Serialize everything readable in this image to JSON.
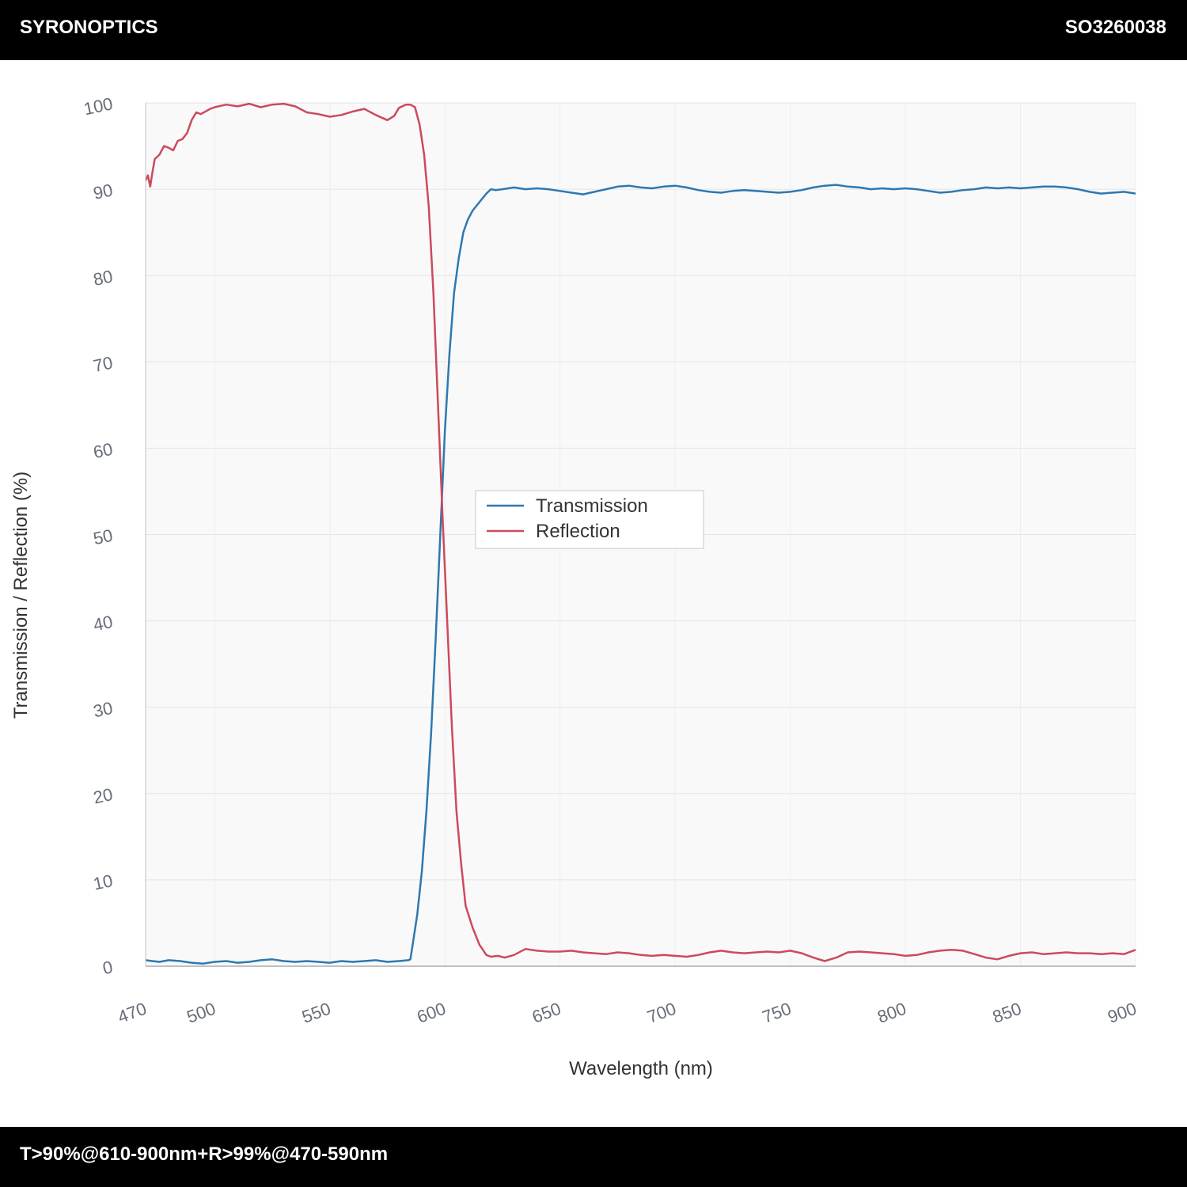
{
  "header": {
    "brand": "SYRONOPTICS",
    "part_number": "SO3260038"
  },
  "footer": {
    "spec": "T>90%@610-900nm+R>99%@470-590nm"
  },
  "colors": {
    "transmission": "#2e78b0",
    "reflection": "#cc4a5c",
    "bar": "#000000",
    "plot_bg": "#f9f9f9",
    "grid": "#e4e4e4"
  },
  "chart_data": {
    "type": "line",
    "xlabel": "Wavelength (nm)",
    "ylabel": "Transmission / Reflection (%)",
    "xlim": [
      470,
      900
    ],
    "ylim": [
      0,
      100
    ],
    "x_ticks": [
      470,
      500,
      550,
      600,
      650,
      700,
      750,
      800,
      850,
      900
    ],
    "y_ticks": [
      0,
      10,
      20,
      30,
      40,
      50,
      60,
      70,
      80,
      90,
      100
    ],
    "grid": true,
    "legend_position": "center",
    "series": [
      {
        "name": "Transmission",
        "color": "#2e78b0",
        "points": [
          [
            470,
            0.7
          ],
          [
            473,
            0.6
          ],
          [
            476,
            0.5
          ],
          [
            480,
            0.7
          ],
          [
            485,
            0.6
          ],
          [
            490,
            0.4
          ],
          [
            495,
            0.3
          ],
          [
            500,
            0.5
          ],
          [
            505,
            0.6
          ],
          [
            510,
            0.4
          ],
          [
            515,
            0.5
          ],
          [
            520,
            0.7
          ],
          [
            525,
            0.8
          ],
          [
            530,
            0.6
          ],
          [
            535,
            0.5
          ],
          [
            540,
            0.6
          ],
          [
            545,
            0.5
          ],
          [
            550,
            0.4
          ],
          [
            555,
            0.6
          ],
          [
            560,
            0.5
          ],
          [
            565,
            0.6
          ],
          [
            570,
            0.7
          ],
          [
            575,
            0.5
          ],
          [
            580,
            0.6
          ],
          [
            584,
            0.7
          ],
          [
            585,
            0.8
          ],
          [
            586,
            2.5
          ],
          [
            588,
            6
          ],
          [
            590,
            11
          ],
          [
            592,
            18
          ],
          [
            594,
            27
          ],
          [
            596,
            38
          ],
          [
            598,
            50
          ],
          [
            600,
            62
          ],
          [
            602,
            71
          ],
          [
            604,
            78
          ],
          [
            606,
            82
          ],
          [
            608,
            85
          ],
          [
            610,
            86.5
          ],
          [
            612,
            87.5
          ],
          [
            615,
            88.5
          ],
          [
            618,
            89.5
          ],
          [
            620,
            90.0
          ],
          [
            622,
            89.9
          ],
          [
            625,
            90.0
          ],
          [
            630,
            90.2
          ],
          [
            635,
            90.0
          ],
          [
            640,
            90.1
          ],
          [
            645,
            90.0
          ],
          [
            650,
            89.8
          ],
          [
            655,
            89.6
          ],
          [
            660,
            89.4
          ],
          [
            665,
            89.7
          ],
          [
            670,
            90.0
          ],
          [
            675,
            90.3
          ],
          [
            680,
            90.4
          ],
          [
            685,
            90.2
          ],
          [
            690,
            90.1
          ],
          [
            695,
            90.3
          ],
          [
            700,
            90.4
          ],
          [
            705,
            90.2
          ],
          [
            710,
            89.9
          ],
          [
            715,
            89.7
          ],
          [
            720,
            89.6
          ],
          [
            725,
            89.8
          ],
          [
            730,
            89.9
          ],
          [
            735,
            89.8
          ],
          [
            740,
            89.7
          ],
          [
            745,
            89.6
          ],
          [
            750,
            89.7
          ],
          [
            755,
            89.9
          ],
          [
            760,
            90.2
          ],
          [
            765,
            90.4
          ],
          [
            770,
            90.5
          ],
          [
            775,
            90.3
          ],
          [
            780,
            90.2
          ],
          [
            785,
            90.0
          ],
          [
            790,
            90.1
          ],
          [
            795,
            90.0
          ],
          [
            800,
            90.1
          ],
          [
            805,
            90.0
          ],
          [
            810,
            89.8
          ],
          [
            815,
            89.6
          ],
          [
            820,
            89.7
          ],
          [
            825,
            89.9
          ],
          [
            830,
            90.0
          ],
          [
            835,
            90.2
          ],
          [
            840,
            90.1
          ],
          [
            845,
            90.2
          ],
          [
            850,
            90.1
          ],
          [
            855,
            90.2
          ],
          [
            860,
            90.3
          ],
          [
            865,
            90.3
          ],
          [
            870,
            90.2
          ],
          [
            875,
            90.0
          ],
          [
            880,
            89.7
          ],
          [
            885,
            89.5
          ],
          [
            890,
            89.6
          ],
          [
            895,
            89.7
          ],
          [
            900,
            89.5
          ]
        ]
      },
      {
        "name": "Reflection",
        "color": "#cc4a5c",
        "points": [
          [
            470,
            91.0
          ],
          [
            471,
            91.6
          ],
          [
            472,
            90.3
          ],
          [
            473,
            92.0
          ],
          [
            474,
            93.5
          ],
          [
            476,
            94.0
          ],
          [
            478,
            95.0
          ],
          [
            480,
            94.8
          ],
          [
            482,
            94.5
          ],
          [
            484,
            95.6
          ],
          [
            486,
            95.8
          ],
          [
            488,
            96.5
          ],
          [
            490,
            98.0
          ],
          [
            492,
            98.9
          ],
          [
            494,
            98.7
          ],
          [
            496,
            99.0
          ],
          [
            498,
            99.3
          ],
          [
            500,
            99.5
          ],
          [
            505,
            99.8
          ],
          [
            510,
            99.6
          ],
          [
            515,
            99.9
          ],
          [
            520,
            99.5
          ],
          [
            525,
            99.8
          ],
          [
            530,
            99.9
          ],
          [
            535,
            99.6
          ],
          [
            540,
            98.9
          ],
          [
            545,
            98.7
          ],
          [
            550,
            98.4
          ],
          [
            555,
            98.6
          ],
          [
            560,
            99.0
          ],
          [
            565,
            99.3
          ],
          [
            570,
            98.6
          ],
          [
            575,
            98.0
          ],
          [
            578,
            98.5
          ],
          [
            580,
            99.4
          ],
          [
            583,
            99.8
          ],
          [
            585,
            99.8
          ],
          [
            587,
            99.5
          ],
          [
            589,
            97.5
          ],
          [
            591,
            94.0
          ],
          [
            593,
            88
          ],
          [
            595,
            78
          ],
          [
            597,
            65
          ],
          [
            599,
            52
          ],
          [
            601,
            40
          ],
          [
            603,
            28
          ],
          [
            605,
            18
          ],
          [
            607,
            12
          ],
          [
            609,
            7
          ],
          [
            612,
            4.5
          ],
          [
            615,
            2.5
          ],
          [
            618,
            1.3
          ],
          [
            620,
            1.1
          ],
          [
            623,
            1.2
          ],
          [
            626,
            1.0
          ],
          [
            630,
            1.3
          ],
          [
            635,
            2.0
          ],
          [
            640,
            1.8
          ],
          [
            645,
            1.7
          ],
          [
            650,
            1.7
          ],
          [
            655,
            1.8
          ],
          [
            660,
            1.6
          ],
          [
            665,
            1.5
          ],
          [
            670,
            1.4
          ],
          [
            675,
            1.6
          ],
          [
            680,
            1.5
          ],
          [
            685,
            1.3
          ],
          [
            690,
            1.2
          ],
          [
            695,
            1.3
          ],
          [
            700,
            1.2
          ],
          [
            705,
            1.1
          ],
          [
            710,
            1.3
          ],
          [
            715,
            1.6
          ],
          [
            720,
            1.8
          ],
          [
            725,
            1.6
          ],
          [
            730,
            1.5
          ],
          [
            735,
            1.6
          ],
          [
            740,
            1.7
          ],
          [
            745,
            1.6
          ],
          [
            750,
            1.8
          ],
          [
            755,
            1.5
          ],
          [
            760,
            1.0
          ],
          [
            765,
            0.6
          ],
          [
            770,
            1.0
          ],
          [
            775,
            1.6
          ],
          [
            780,
            1.7
          ],
          [
            785,
            1.6
          ],
          [
            790,
            1.5
          ],
          [
            795,
            1.4
          ],
          [
            800,
            1.2
          ],
          [
            805,
            1.3
          ],
          [
            810,
            1.6
          ],
          [
            815,
            1.8
          ],
          [
            820,
            1.9
          ],
          [
            825,
            1.8
          ],
          [
            830,
            1.4
          ],
          [
            835,
            1.0
          ],
          [
            840,
            0.8
          ],
          [
            845,
            1.2
          ],
          [
            850,
            1.5
          ],
          [
            855,
            1.6
          ],
          [
            860,
            1.4
          ],
          [
            865,
            1.5
          ],
          [
            870,
            1.6
          ],
          [
            875,
            1.5
          ],
          [
            880,
            1.5
          ],
          [
            885,
            1.4
          ],
          [
            890,
            1.5
          ],
          [
            895,
            1.4
          ],
          [
            900,
            1.9
          ]
        ]
      }
    ]
  }
}
